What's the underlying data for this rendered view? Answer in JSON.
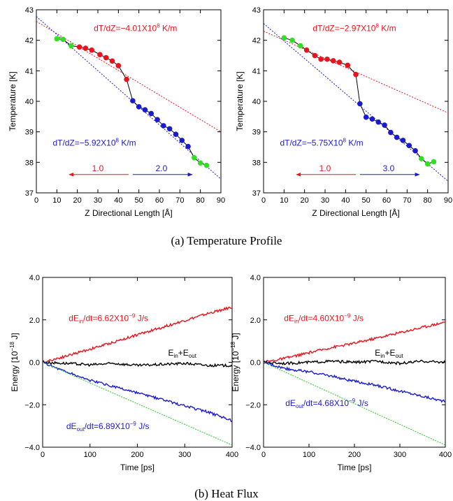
{
  "captions": {
    "a": "(a)  Temperature Profile",
    "b": "(b) Heat Flux"
  },
  "colors": {
    "red": "#e8141b",
    "blue": "#1a1ad0",
    "green": "#33dd22",
    "black": "#000000",
    "fit_green": "#22cc22"
  },
  "chart_data": [
    {
      "type": "scatter",
      "panel": "a-left",
      "xlabel": "Z Directional Length [Å]",
      "ylabel": "Temperature [K]",
      "xlim": [
        0,
        90
      ],
      "ylim": [
        37,
        43
      ],
      "xticks": [
        "0",
        "10",
        "20",
        "30",
        "40",
        "50",
        "60",
        "70",
        "80",
        "90"
      ],
      "yticks": [
        "37",
        "38",
        "39",
        "40",
        "41",
        "42",
        "43"
      ],
      "annotations": {
        "red_main": "dT/dZ=−4.01X10",
        "red_exp": "8",
        "red_unit": " K/m",
        "blue_main": "dT/dZ=−5.92X10",
        "blue_exp": "8",
        "blue_unit": " K/m",
        "arrow_left": "1.0",
        "arrow_right": "2.0"
      },
      "arrows": {
        "left": [
          45,
          16,
          37.6
        ],
        "right": [
          47,
          76,
          37.6
        ]
      },
      "fits": [
        {
          "color": "red",
          "x": [
            0,
            90
          ],
          "y": [
            42.62,
            39.0
          ]
        },
        {
          "color": "blue",
          "x": [
            0,
            90
          ],
          "y": [
            42.78,
            37.45
          ]
        }
      ],
      "series": [
        {
          "color": "green",
          "x": [
            10,
            13,
            17
          ],
          "y": [
            42.05,
            42.03,
            41.82
          ]
        },
        {
          "color": "red",
          "x": [
            21,
            24,
            27,
            31,
            34,
            37,
            40,
            44
          ],
          "y": [
            41.78,
            41.74,
            41.68,
            41.53,
            41.43,
            41.32,
            41.17,
            40.72
          ]
        },
        {
          "color": "blue",
          "x": [
            47,
            50,
            53,
            56,
            59,
            62,
            65,
            68,
            71,
            74
          ],
          "y": [
            40.02,
            39.82,
            39.72,
            39.6,
            39.4,
            39.2,
            39.1,
            38.92,
            38.72,
            38.52
          ]
        },
        {
          "color": "green",
          "x": [
            77,
            80,
            83
          ],
          "y": [
            38.15,
            37.98,
            37.9
          ]
        }
      ]
    },
    {
      "type": "scatter",
      "panel": "a-right",
      "xlabel": "Z Directional Length [Å]",
      "ylabel": "Temperature [K]",
      "xlim": [
        0,
        90
      ],
      "ylim": [
        37,
        43
      ],
      "xticks": [
        "0",
        "10",
        "20",
        "30",
        "40",
        "50",
        "60",
        "70",
        "80",
        "90"
      ],
      "yticks": [
        "37",
        "38",
        "39",
        "40",
        "41",
        "42",
        "43"
      ],
      "annotations": {
        "red_main": "dT/dZ=−2.97X10",
        "red_exp": "8",
        "red_unit": " K/m",
        "blue_main": "dT/dZ=−5.75X10",
        "blue_exp": "8",
        "blue_unit": " K/m",
        "arrow_left": "1.0",
        "arrow_right": "3.0"
      },
      "arrows": {
        "left": [
          45,
          16,
          37.6
        ],
        "right": [
          47,
          76,
          37.6
        ]
      },
      "fits": [
        {
          "color": "red",
          "x": [
            0,
            90
          ],
          "y": [
            42.3,
            39.62
          ]
        },
        {
          "color": "blue",
          "x": [
            0,
            90
          ],
          "y": [
            42.55,
            37.38
          ]
        }
      ],
      "series": [
        {
          "color": "green",
          "x": [
            10,
            14,
            18
          ],
          "y": [
            42.08,
            42.0,
            41.82
          ]
        },
        {
          "color": "red",
          "x": [
            21,
            25,
            28,
            31,
            34,
            37,
            41,
            45
          ],
          "y": [
            41.68,
            41.5,
            41.38,
            41.38,
            41.33,
            41.28,
            41.18,
            40.88
          ]
        },
        {
          "color": "blue",
          "x": [
            47,
            50,
            53,
            56,
            59,
            62,
            65,
            68,
            71,
            74
          ],
          "y": [
            39.92,
            39.48,
            39.42,
            39.32,
            39.22,
            38.98,
            38.82,
            38.72,
            38.55,
            38.38
          ]
        },
        {
          "color": "green",
          "x": [
            77,
            80,
            83
          ],
          "y": [
            38.12,
            37.95,
            38.02
          ]
        }
      ]
    },
    {
      "type": "line",
      "panel": "b-left",
      "xlabel": "Time [ps]",
      "ylabel": "Energy [10",
      "ylabel_exp": "−18",
      "ylabel_unit": " J]",
      "xlim": [
        0,
        400
      ],
      "ylim": [
        -4,
        4
      ],
      "xticks": [
        "0",
        "100",
        "200",
        "300",
        "400"
      ],
      "yticks": [
        "−4.0",
        "−2.0",
        "0.0",
        "2.0",
        "4.0"
      ],
      "annotations": {
        "in_pre": "dE",
        "in_sub": "in",
        "in_post": "/dt=6.62X10",
        "in_exp": "−9",
        "in_unit": " J/s",
        "out_pre": "dE",
        "out_sub": "out",
        "out_post": "/dt=6.89X10",
        "out_exp": "−9",
        "out_unit": " J/s",
        "sum_a": "E",
        "sum_a_sub": "in",
        "sum_plus": "+E",
        "sum_b_sub": "out"
      },
      "series": [
        {
          "name": "E_in",
          "color": "red",
          "x": [
            0,
            50,
            100,
            150,
            200,
            250,
            300,
            350,
            400
          ],
          "y": [
            0.0,
            0.3,
            0.62,
            0.95,
            1.3,
            1.63,
            1.97,
            2.3,
            2.6
          ]
        },
        {
          "name": "E_in+E_out",
          "color": "black",
          "x": [
            0,
            50,
            100,
            150,
            200,
            250,
            300,
            350,
            400
          ],
          "y": [
            0.0,
            -0.05,
            -0.12,
            -0.05,
            -0.15,
            -0.1,
            -0.05,
            -0.15,
            -0.15
          ]
        },
        {
          "name": "E_out",
          "color": "blue",
          "x": [
            0,
            50,
            100,
            150,
            200,
            250,
            300,
            350,
            400
          ],
          "y": [
            0.0,
            -0.45,
            -0.85,
            -1.15,
            -1.45,
            -1.75,
            -2.05,
            -2.35,
            -2.75
          ]
        },
        {
          "name": "fit",
          "color": "fit_green",
          "x": [
            0,
            400
          ],
          "y": [
            0.0,
            -3.9
          ]
        }
      ]
    },
    {
      "type": "line",
      "panel": "b-right",
      "xlabel": "Time [ps]",
      "ylabel": "Energy [10",
      "ylabel_exp": "−18",
      "ylabel_unit": " J]",
      "xlim": [
        0,
        400
      ],
      "ylim": [
        -4,
        4
      ],
      "xticks": [
        "0",
        "100",
        "200",
        "300",
        "400"
      ],
      "yticks": [
        "−4.0",
        "−2.0",
        "0.0",
        "2.0",
        "4.0"
      ],
      "annotations": {
        "in_pre": "dE",
        "in_sub": "in",
        "in_post": "/dt=4.60X10",
        "in_exp": "−9",
        "in_unit": " J/s",
        "out_pre": "dE",
        "out_sub": "out",
        "out_post": "/dt=4.68X10",
        "out_exp": "−9",
        "out_unit": " J/s",
        "sum_a": "E",
        "sum_a_sub": "in",
        "sum_plus": "+E",
        "sum_b_sub": "out"
      },
      "series": [
        {
          "name": "E_in",
          "color": "red",
          "x": [
            0,
            50,
            100,
            150,
            200,
            250,
            300,
            350,
            400
          ],
          "y": [
            0.0,
            0.2,
            0.45,
            0.7,
            0.9,
            1.15,
            1.4,
            1.65,
            1.9
          ]
        },
        {
          "name": "E_in+E_out",
          "color": "black",
          "x": [
            0,
            50,
            100,
            150,
            200,
            250,
            300,
            350,
            400
          ],
          "y": [
            0.0,
            -0.05,
            0.0,
            0.05,
            0.0,
            0.05,
            -0.05,
            0.05,
            0.0
          ]
        },
        {
          "name": "E_out",
          "color": "blue",
          "x": [
            0,
            50,
            100,
            150,
            200,
            250,
            300,
            350,
            400
          ],
          "y": [
            0.0,
            -0.3,
            -0.45,
            -0.65,
            -0.9,
            -1.1,
            -1.35,
            -1.6,
            -1.85
          ]
        },
        {
          "name": "fit",
          "color": "fit_green",
          "x": [
            0,
            400
          ],
          "y": [
            0.0,
            -3.9
          ]
        }
      ]
    }
  ]
}
